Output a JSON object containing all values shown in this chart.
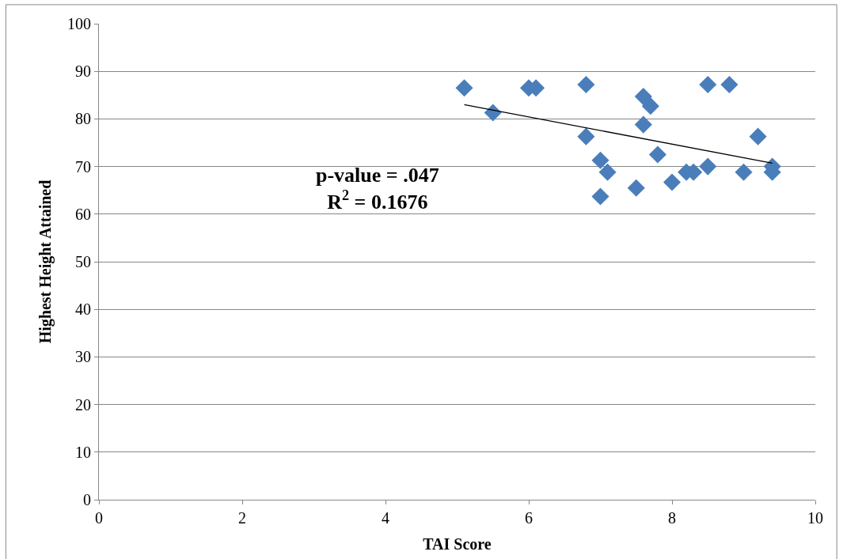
{
  "chart_data": {
    "type": "scatter",
    "xlabel": "TAI Score",
    "ylabel": "Highest Height Attained",
    "annotations": [
      "p-value = .047\nR$^{2}$ = 0.1676"
    ],
    "series": [
      {
        "color": "#4a7ebb",
        "marker": "diamond",
        "x": [
          5.1,
          5.5,
          6.0,
          6.1,
          6.8,
          6.8,
          7.0,
          7.1,
          7.0,
          7.5,
          7.6,
          7.7,
          7.6,
          7.8,
          8.0,
          8.2,
          8.3,
          8.5,
          8.5,
          8.8,
          9.0,
          9.2,
          9.4,
          9.4
        ],
        "values": [
          86.5,
          81.3,
          86.5,
          86.5,
          87.2,
          76.3,
          71.3,
          68.8,
          63.7,
          65.5,
          84.7,
          82.7,
          78.8,
          72.5,
          66.7,
          68.8,
          68.8,
          70,
          87.2,
          87.2,
          68.8,
          76.3,
          70,
          68.8
        ]
      },
      {
        "type": "line",
        "color": "#000000",
        "marker": "none",
        "x": [
          5.1,
          9.4
        ],
        "values": [
          83.0,
          70.7
        ]
      }
    ],
    "xlim": [
      0,
      10
    ],
    "xticks": [
      0,
      2,
      4,
      6,
      8,
      10
    ],
    "ylim": [
      0,
      100
    ],
    "yticks": [
      0,
      10,
      20,
      30,
      40,
      50,
      60,
      70,
      80,
      90,
      100
    ],
    "grid": "y",
    "legend": false
  }
}
